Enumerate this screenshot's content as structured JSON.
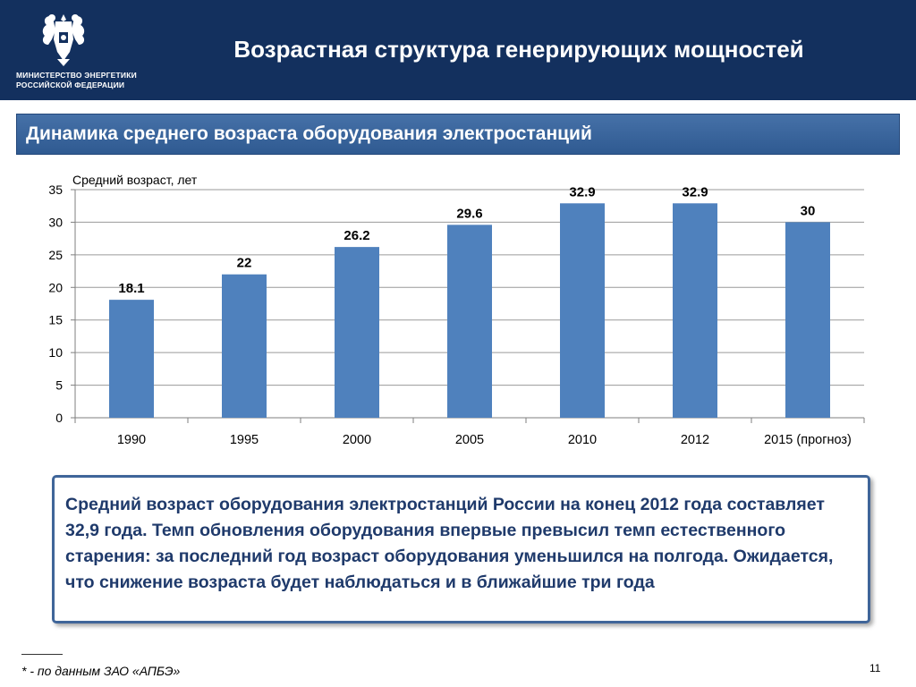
{
  "header": {
    "ministry_line1": "МИНИСТЕРСТВО ЭНЕРГЕТИКИ",
    "ministry_line2": "РОССИЙСКОЙ ФЕДЕРАЦИИ",
    "title": "Возрастная структура генерирующих мощностей",
    "emblem_icon": "double-headed-eagle-icon"
  },
  "section": {
    "subtitle": "Динамика среднего возраста оборудования электростанций"
  },
  "chart_data": {
    "type": "bar",
    "ylabel": "Средний возраст, лет",
    "categories": [
      "1990",
      "1995",
      "2000",
      "2005",
      "2010",
      "2012",
      "2015 (прогноз)"
    ],
    "values": [
      18.1,
      22,
      26.2,
      29.6,
      32.9,
      32.9,
      30
    ],
    "data_labels": [
      "18.1",
      "22",
      "26.2",
      "29.6",
      "32.9",
      "32.9",
      "30"
    ],
    "ylim": [
      0,
      35
    ],
    "yticks": [
      0,
      5,
      10,
      15,
      20,
      25,
      30,
      35
    ],
    "grid": true,
    "bar_color": "#4f81bd"
  },
  "note": {
    "text": "Средний возраст оборудования электростанций России на конец 2012 года составляет 32,9 года. Темп обновления оборудования впервые превысил темп естественного старения: за последний год возраст оборудования уменьшился на полгода. Ожидается, что снижение возраста будет наблюдаться и в ближайшие три года"
  },
  "footer": {
    "footnote": "* - по данным ЗАО «АПБЭ»",
    "page_number": "11"
  },
  "colors": {
    "header_bg": "#13305e",
    "subbar_bg": "#3a659c",
    "note_border": "#3f6599",
    "note_text": "#1f3a6b"
  }
}
